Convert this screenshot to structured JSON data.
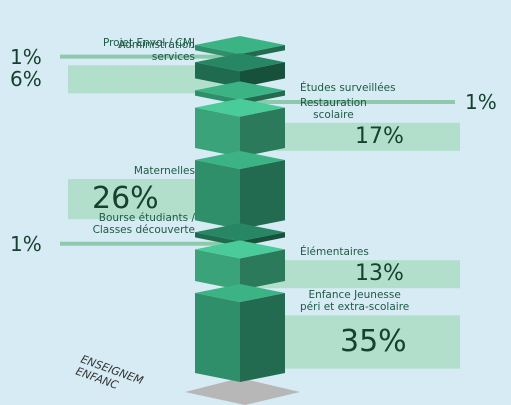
{
  "chart_data": {
    "type": "stacked-cubes",
    "categories": [
      "Projet Envol / CMJ",
      "Administration\nservices",
      "Études surveillées",
      "Restauration\nscolaire",
      "Maternelles",
      "Bourse étudiants /\nClasses découverte",
      "Élémentaires",
      "Enfance Jeunesse\npéri et extra-scolaire"
    ],
    "values": [
      1,
      6,
      1,
      17,
      26,
      1,
      13,
      35
    ],
    "value_labels": [
      "1%",
      "6%",
      "1%",
      "17%",
      "26%",
      "1%",
      "13%",
      "35%"
    ],
    "colors": [
      "#2f8f6a",
      "#1f6b4f",
      "#2f8f6a",
      "#3aa37a",
      "#2f8f6a",
      "#1f6b4f",
      "#3aa37a",
      "#2f8f6a"
    ],
    "annotations": [
      "ENSEIGNEM",
      "ENFANC"
    ]
  }
}
